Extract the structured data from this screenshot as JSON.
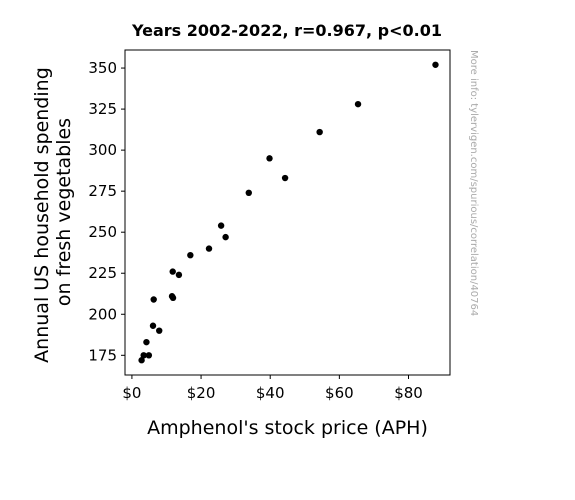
{
  "chart_data": {
    "type": "scatter",
    "title": "Years 2002-2022, r=0.967, p<0.01",
    "xlabel": "Amphenol's stock price (APH)",
    "ylabel_lines": [
      "Annual US household spending",
      "on fresh vegetables"
    ],
    "side_note": "More info: tylervigen.com/spurious/correlation/40764",
    "xlim": [
      -2,
      92
    ],
    "ylim": [
      163,
      361
    ],
    "x_ticks": [
      {
        "value": 0,
        "label": "$0"
      },
      {
        "value": 20,
        "label": "$20"
      },
      {
        "value": 40,
        "label": "$40"
      },
      {
        "value": 60,
        "label": "$60"
      },
      {
        "value": 80,
        "label": "$80"
      }
    ],
    "y_ticks": [
      {
        "value": 175,
        "label": "175"
      },
      {
        "value": 200,
        "label": "200"
      },
      {
        "value": 225,
        "label": "225"
      },
      {
        "value": 250,
        "label": "250"
      },
      {
        "value": 275,
        "label": "275"
      },
      {
        "value": 300,
        "label": "300"
      },
      {
        "value": 325,
        "label": "325"
      },
      {
        "value": 350,
        "label": "350"
      }
    ],
    "marker_color": "#000000",
    "grid": false,
    "points": [
      {
        "x": 2.8,
        "y": 172
      },
      {
        "x": 3.4,
        "y": 175
      },
      {
        "x": 4.9,
        "y": 175
      },
      {
        "x": 4.2,
        "y": 183
      },
      {
        "x": 6.1,
        "y": 193
      },
      {
        "x": 7.9,
        "y": 190
      },
      {
        "x": 6.3,
        "y": 209
      },
      {
        "x": 11.6,
        "y": 211
      },
      {
        "x": 11.9,
        "y": 210
      },
      {
        "x": 11.8,
        "y": 226
      },
      {
        "x": 13.6,
        "y": 224
      },
      {
        "x": 16.9,
        "y": 236
      },
      {
        "x": 22.3,
        "y": 240
      },
      {
        "x": 25.8,
        "y": 254
      },
      {
        "x": 27.1,
        "y": 247
      },
      {
        "x": 33.8,
        "y": 274
      },
      {
        "x": 39.8,
        "y": 295
      },
      {
        "x": 44.3,
        "y": 283
      },
      {
        "x": 54.3,
        "y": 311
      },
      {
        "x": 65.4,
        "y": 328
      },
      {
        "x": 87.8,
        "y": 352
      }
    ]
  }
}
